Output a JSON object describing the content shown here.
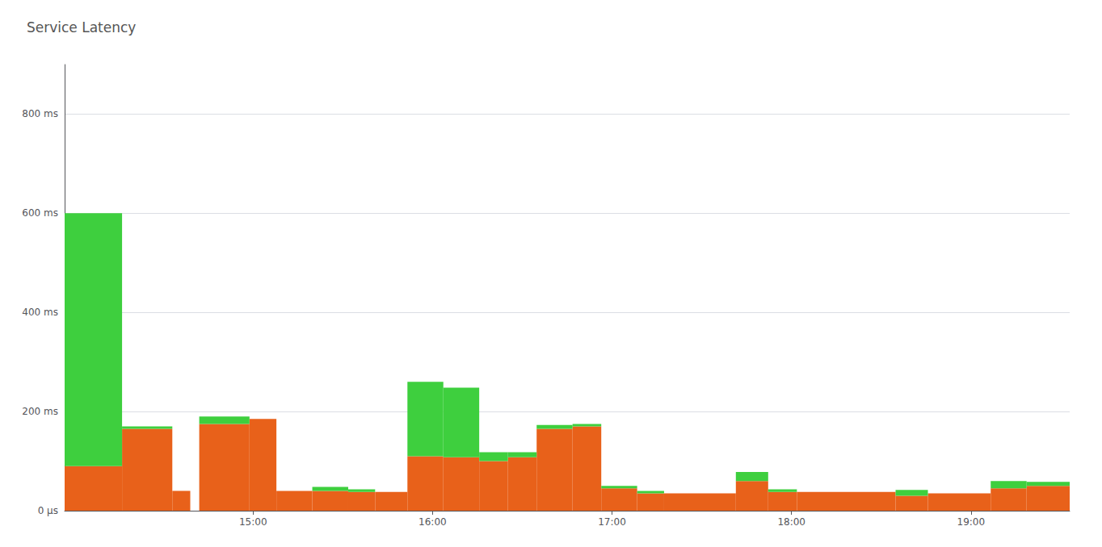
{
  "chart_data": {
    "type": "histogram",
    "title": "Service Latency",
    "stacked": true,
    "grid": true,
    "bins": [
      13.95,
      14.27,
      14.55,
      14.65,
      14.7,
      14.98,
      15.13,
      15.33,
      15.53,
      15.68,
      15.86,
      16.06,
      16.26,
      16.42,
      16.58,
      16.78,
      16.94,
      17.14,
      17.29,
      17.69,
      17.87,
      18.03,
      18.58,
      18.76,
      19.11,
      19.31,
      19.55
    ],
    "series": [
      {
        "color": "#e8611a",
        "values": [
          90,
          165,
          40,
          0,
          175,
          185,
          40,
          40,
          38,
          38,
          110,
          108,
          100,
          108,
          165,
          170,
          45,
          35,
          35,
          60,
          38,
          38,
          30,
          35,
          45,
          50
        ]
      },
      {
        "color": "#3ecf3e",
        "values": [
          510,
          5,
          0,
          0,
          15,
          0,
          0,
          8,
          5,
          0,
          150,
          140,
          18,
          10,
          8,
          5,
          5,
          5,
          0,
          18,
          5,
          0,
          12,
          0,
          15,
          8
        ]
      }
    ],
    "xlim": [
      13.95,
      19.55
    ],
    "xticks": [
      {
        "value": 15.0,
        "label": "15:00"
      },
      {
        "value": 16.0,
        "label": "16:00"
      },
      {
        "value": 17.0,
        "label": "17:00"
      },
      {
        "value": 18.0,
        "label": "18:00"
      },
      {
        "value": 19.0,
        "label": "19:00"
      }
    ],
    "ylim": [
      0,
      900
    ],
    "yticks": [
      {
        "value": 0,
        "label": "0 μs"
      },
      {
        "value": 200,
        "label": "200 ms"
      },
      {
        "value": 400,
        "label": "400 ms"
      },
      {
        "value": 600,
        "label": "600 ms"
      },
      {
        "value": 800,
        "label": "800 ms"
      }
    ]
  }
}
